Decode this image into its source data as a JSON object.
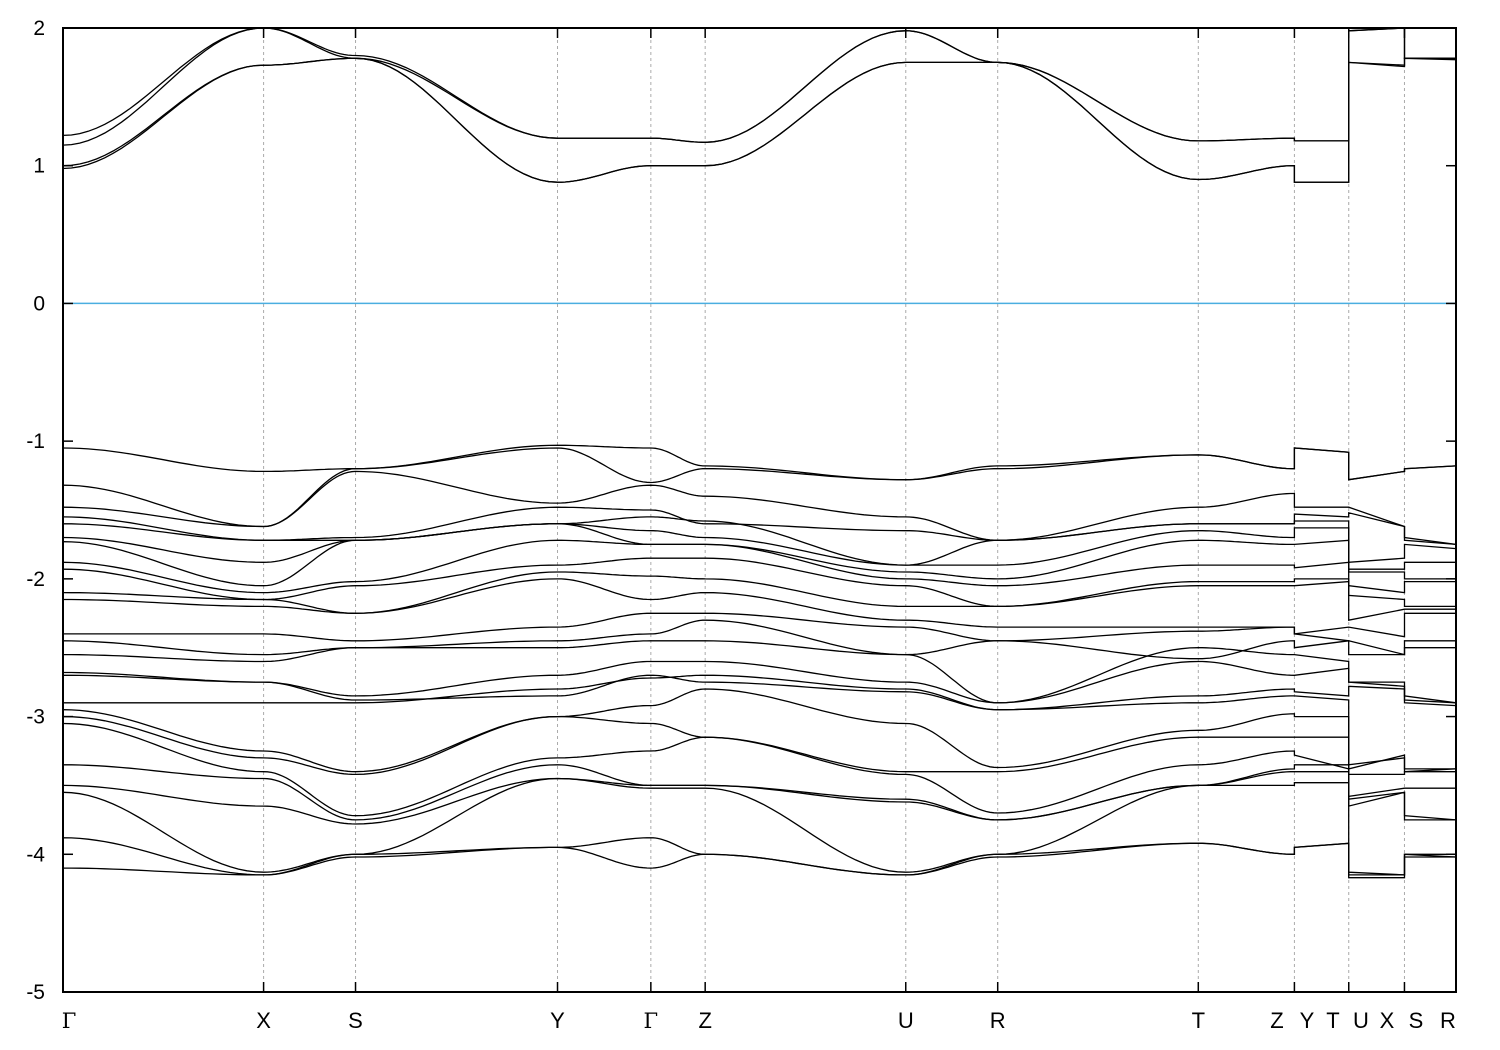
{
  "chart_data": {
    "type": "line",
    "title": "",
    "xlabel": "",
    "ylabel": "",
    "ylim": [
      -5,
      2
    ],
    "yticks": [
      "2",
      "1",
      "0",
      "-1",
      "-2",
      "-3",
      "-4",
      "-5"
    ],
    "xlim": [
      0,
      1
    ],
    "grid": "vertical dotted lines at high-symmetry points",
    "legend": "none",
    "fermi_level": {
      "value": 0,
      "color": "#4aaee0"
    },
    "band_color": "#000000",
    "kpoint_labels": [
      {
        "label": "Γ",
        "x": 0.0
      },
      {
        "label": "X",
        "x": 0.144
      },
      {
        "label": "S",
        "x": 0.21
      },
      {
        "label": "Y",
        "x": 0.355
      },
      {
        "label": "Γ",
        "x": 0.422
      },
      {
        "label": "Z",
        "x": 0.461
      },
      {
        "label": "U",
        "x": 0.605
      },
      {
        "label": "R",
        "x": 0.671
      },
      {
        "label": "T",
        "x": 0.815
      },
      {
        "label": "Z",
        "x": 0.884
      },
      {
        "label": "Y",
        "x": 0.884
      },
      {
        "label": "T",
        "x": 0.923
      },
      {
        "label": "U",
        "x": 0.923
      },
      {
        "label": "X",
        "x": 0.963
      },
      {
        "label": "S",
        "x": 0.963
      },
      {
        "label": "R",
        "x": 1.0
      }
    ],
    "node_x": [
      0.0,
      0.144,
      0.21,
      0.355,
      0.422,
      0.461,
      0.605,
      0.671,
      0.815,
      0.884
    ],
    "tail_segments_x": [
      [
        0.884,
        0.923
      ],
      [
        0.923,
        0.963
      ],
      [
        0.963,
        1.0
      ]
    ],
    "bands": [
      {
        "nodes": [
          1.0,
          1.73,
          1.78,
          0.88,
          1.0,
          1.0,
          1.75,
          1.75,
          0.9,
          1.0
        ],
        "tails": [
          [
            0.88,
            0.88
          ],
          [
            1.75,
            1.72
          ],
          [
            1.78,
            1.77
          ]
        ]
      },
      {
        "nodes": [
          0.98,
          1.73,
          1.78,
          0.88,
          1.0,
          1.0,
          1.75,
          1.75,
          0.9,
          1.0
        ],
        "tails": [
          [
            0.88,
            0.88
          ],
          [
            1.75,
            1.73
          ],
          [
            1.78,
            1.78
          ]
        ]
      },
      {
        "nodes": [
          1.15,
          2.0,
          1.8,
          1.2,
          1.2,
          1.17,
          1.98,
          1.75,
          1.18,
          1.2
        ],
        "tails": [
          [
            1.18,
            1.18
          ],
          [
            1.98,
            2.0
          ],
          [
            1.78,
            1.78
          ]
        ]
      },
      {
        "nodes": [
          1.22,
          2.0,
          1.78,
          1.2,
          1.2,
          1.17,
          1.98,
          1.75,
          1.18,
          1.2
        ],
        "tails": [
          [
            1.18,
            1.18
          ],
          [
            1.98,
            2.0
          ],
          [
            1.78,
            1.78
          ]
        ]
      },
      {
        "nodes": [
          -1.05,
          -1.22,
          -1.2,
          -1.05,
          -1.3,
          -1.2,
          -1.28,
          -1.18,
          -1.1,
          -1.2
        ],
        "tails": [
          [
            -1.05,
            -1.08
          ],
          [
            -1.28,
            -1.22
          ],
          [
            -1.2,
            -1.18
          ]
        ]
      },
      {
        "nodes": [
          -1.32,
          -1.62,
          -1.2,
          -1.03,
          -1.05,
          -1.18,
          -1.28,
          -1.2,
          -1.1,
          -1.2
        ],
        "tails": [
          [
            -1.05,
            -1.08
          ],
          [
            -1.28,
            -1.22
          ],
          [
            -1.2,
            -1.18
          ]
        ]
      },
      {
        "nodes": [
          -1.48,
          -1.62,
          -1.22,
          -1.45,
          -1.32,
          -1.4,
          -1.55,
          -1.72,
          -1.48,
          -1.38
        ],
        "tails": [
          [
            -1.48,
            -1.48
          ],
          [
            -1.48,
            -1.62
          ],
          [
            -1.7,
            -1.75
          ]
        ]
      },
      {
        "nodes": [
          -1.55,
          -1.72,
          -1.7,
          -1.48,
          -1.5,
          -1.6,
          -1.65,
          -1.72,
          -1.6,
          -1.6
        ],
        "tails": [
          [
            -1.53,
            -1.55
          ],
          [
            -1.52,
            -1.62
          ],
          [
            -1.72,
            -1.75
          ]
        ]
      },
      {
        "nodes": [
          -1.6,
          -1.72,
          -1.72,
          -1.6,
          -1.55,
          -1.58,
          -1.9,
          -1.72,
          -1.6,
          -1.6
        ],
        "tails": [
          [
            -1.58,
            -1.58
          ],
          [
            -1.88,
            -1.85
          ],
          [
            -1.75,
            -1.78
          ]
        ]
      },
      {
        "nodes": [
          -1.7,
          -1.88,
          -1.72,
          -1.6,
          -1.65,
          -1.7,
          -1.9,
          -1.9,
          -1.65,
          -1.7
        ],
        "tails": [
          [
            -1.63,
            -1.63
          ],
          [
            -1.93,
            -1.93
          ],
          [
            -1.88,
            -1.88
          ]
        ]
      },
      {
        "nodes": [
          -1.73,
          -2.05,
          -1.72,
          -1.6,
          -1.75,
          -1.75,
          -1.95,
          -2.0,
          -1.72,
          -1.75
        ],
        "tails": [
          [
            -1.75,
            -1.72
          ],
          [
            -1.95,
            -1.95
          ],
          [
            -2.0,
            -2.0
          ]
        ]
      },
      {
        "nodes": [
          -1.88,
          -2.1,
          -2.02,
          -1.72,
          -1.75,
          -1.75,
          -2.0,
          -2.05,
          -1.9,
          -1.9
        ],
        "tails": [
          [
            -1.92,
            -1.88
          ],
          [
            -2.05,
            -2.1
          ],
          [
            -2.02,
            -2.02
          ]
        ]
      },
      {
        "nodes": [
          -1.93,
          -2.15,
          -2.05,
          -1.9,
          -1.85,
          -1.85,
          -2.05,
          -2.2,
          -2.02,
          -2.02
        ],
        "tails": [
          [
            -2.0,
            -2.0
          ],
          [
            -2.12,
            -2.15
          ],
          [
            -2.2,
            -2.2
          ]
        ]
      },
      {
        "nodes": [
          -2.1,
          -2.15,
          -2.25,
          -1.95,
          -1.98,
          -2.0,
          -2.2,
          -2.2,
          -2.05,
          -2.05
        ],
        "tails": [
          [
            -2.05,
            -2.02
          ],
          [
            -2.3,
            -2.22
          ],
          [
            -2.22,
            -2.22
          ]
        ]
      },
      {
        "nodes": [
          -2.15,
          -2.2,
          -2.25,
          -2.0,
          -2.15,
          -2.1,
          -2.3,
          -2.35,
          -2.35,
          -2.35
        ],
        "tails": [
          [
            -2.4,
            -2.35
          ],
          [
            -2.35,
            -2.42
          ],
          [
            -2.25,
            -2.25
          ]
        ]
      },
      {
        "nodes": [
          -2.4,
          -2.4,
          -2.45,
          -2.35,
          -2.25,
          -2.25,
          -2.35,
          -2.45,
          -2.38,
          -2.35
        ],
        "tails": [
          [
            -2.4,
            -2.45
          ],
          [
            -2.45,
            -2.55
          ],
          [
            -2.45,
            -2.45
          ]
        ]
      },
      {
        "nodes": [
          -2.45,
          -2.55,
          -2.5,
          -2.45,
          -2.4,
          -2.3,
          -2.55,
          -2.45,
          -2.58,
          -2.45
        ],
        "tails": [
          [
            -2.5,
            -2.45
          ],
          [
            -2.55,
            -2.55
          ],
          [
            -2.5,
            -2.5
          ]
        ]
      },
      {
        "nodes": [
          -2.55,
          -2.6,
          -2.5,
          -2.5,
          -2.45,
          -2.45,
          -2.55,
          -2.9,
          -2.5,
          -2.55
        ],
        "tails": [
          [
            -2.55,
            -2.6
          ],
          [
            -2.75,
            -2.78
          ],
          [
            -2.85,
            -2.9
          ]
        ]
      },
      {
        "nodes": [
          -2.68,
          -2.75,
          -2.85,
          -2.7,
          -2.6,
          -2.6,
          -2.75,
          -2.9,
          -2.6,
          -2.7
        ],
        "tails": [
          [
            -2.7,
            -2.65
          ],
          [
            -2.75,
            -2.75
          ],
          [
            -2.88,
            -2.9
          ]
        ]
      },
      {
        "nodes": [
          -2.7,
          -2.75,
          -2.88,
          -2.85,
          -2.7,
          -2.75,
          -2.82,
          -2.95,
          -2.85,
          -2.8
        ],
        "tails": [
          [
            -2.82,
            -2.85
          ],
          [
            -2.78,
            -2.8
          ],
          [
            -2.9,
            -2.92
          ]
        ]
      },
      {
        "nodes": [
          -2.9,
          -2.9,
          -2.9,
          -2.8,
          -2.72,
          -2.7,
          -2.8,
          -2.95,
          -2.9,
          -2.85
        ],
        "tails": [
          [
            -2.85,
            -2.88
          ],
          [
            -3.35,
            -3.3
          ],
          [
            -3.38,
            -3.38
          ]
        ]
      },
      {
        "nodes": [
          -2.95,
          -3.25,
          -3.4,
          -3.0,
          -2.92,
          -2.8,
          -3.05,
          -3.37,
          -3.1,
          -2.98
        ],
        "tails": [
          [
            -3.0,
            -3.0
          ],
          [
            -3.38,
            -3.28
          ],
          [
            -3.4,
            -3.38
          ]
        ]
      },
      {
        "nodes": [
          -3.0,
          -3.3,
          -3.42,
          -3.0,
          -3.05,
          -3.15,
          -3.4,
          -3.4,
          -3.15,
          -3.15
        ],
        "tails": [
          [
            -3.15,
            -3.15
          ],
          [
            -3.42,
            -3.42
          ],
          [
            -3.4,
            -3.4
          ]
        ]
      },
      {
        "nodes": [
          -3.05,
          -3.4,
          -3.72,
          -3.3,
          -3.25,
          -3.15,
          -3.42,
          -3.7,
          -3.35,
          -3.25
        ],
        "tails": [
          [
            -3.28,
            -3.38
          ],
          [
            -3.58,
            -3.52
          ],
          [
            -3.52,
            -3.52
          ]
        ]
      },
      {
        "nodes": [
          -3.35,
          -3.45,
          -3.75,
          -3.35,
          -3.5,
          -3.5,
          -3.6,
          -3.75,
          -3.5,
          -3.38
        ],
        "tails": [
          [
            -3.35,
            -3.35
          ],
          [
            -3.6,
            -3.55
          ],
          [
            -3.75,
            -3.75
          ]
        ]
      },
      {
        "nodes": [
          -3.5,
          -3.65,
          -3.78,
          -3.45,
          -3.5,
          -3.5,
          -3.62,
          -3.75,
          -3.5,
          -3.4
        ],
        "tails": [
          [
            -3.4,
            -3.4
          ],
          [
            -3.65,
            -3.55
          ],
          [
            -3.72,
            -3.75
          ]
        ]
      },
      {
        "nodes": [
          -3.55,
          -4.13,
          -4.0,
          -3.45,
          -3.52,
          -3.52,
          -4.13,
          -4.0,
          -3.5,
          -3.5
        ],
        "tails": [
          [
            -3.48,
            -3.48
          ],
          [
            -4.13,
            -4.15
          ],
          [
            -4.0,
            -4.0
          ]
        ]
      },
      {
        "nodes": [
          -3.88,
          -4.15,
          -4.0,
          -3.95,
          -3.88,
          -4.0,
          -4.15,
          -4.0,
          -3.92,
          -4.0
        ],
        "tails": [
          [
            -3.95,
            -3.92
          ],
          [
            -4.15,
            -4.15
          ],
          [
            -4.0,
            -4.02
          ]
        ]
      },
      {
        "nodes": [
          -4.1,
          -4.15,
          -4.02,
          -3.95,
          -4.1,
          -4.0,
          -4.15,
          -4.02,
          -3.92,
          -4.0
        ],
        "tails": [
          [
            -3.95,
            -3.92
          ],
          [
            -4.17,
            -4.17
          ],
          [
            -4.02,
            -4.02
          ]
        ]
      }
    ],
    "kpoint_axis_labels": [
      {
        "label": "Γ",
        "serif": true
      },
      {
        "label": "X"
      },
      {
        "label": "S"
      },
      {
        "label": "Y"
      },
      {
        "label": "Γ",
        "serif": true
      },
      {
        "label": "Z"
      },
      {
        "label": "U"
      },
      {
        "label": "R"
      },
      {
        "label": "T"
      },
      {
        "label": "Z"
      },
      {
        "label": "Y"
      },
      {
        "label": "T"
      },
      {
        "label": "U"
      },
      {
        "label": "X"
      },
      {
        "label": "S"
      },
      {
        "label": "R"
      }
    ]
  }
}
